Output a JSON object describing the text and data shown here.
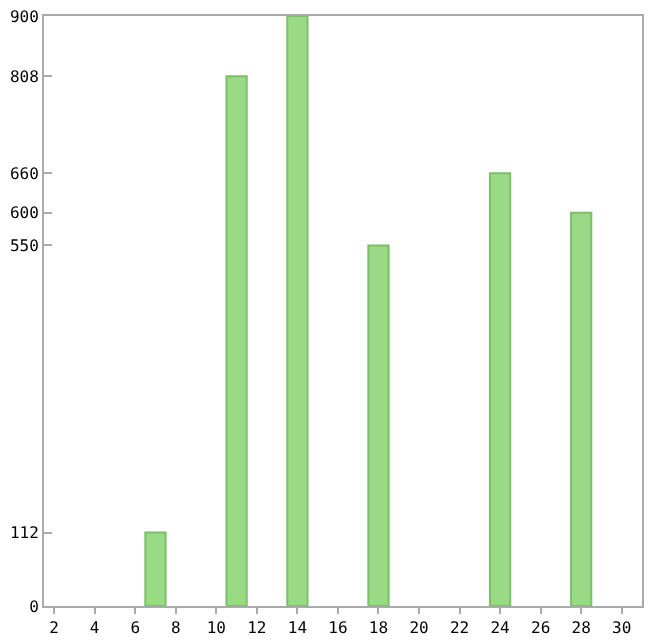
{
  "chart_data": {
    "type": "bar",
    "x": [
      7,
      11,
      14,
      18,
      24,
      28
    ],
    "values": [
      112,
      808,
      900,
      550,
      660,
      600
    ],
    "color": "#9ada84",
    "xlim": [
      1.5,
      31
    ],
    "xticks": [
      2,
      4,
      6,
      8,
      10,
      12,
      14,
      16,
      18,
      20,
      22,
      24,
      26,
      28,
      30
    ],
    "ylim": [
      0,
      900
    ],
    "yticks": [
      0,
      112,
      550,
      600,
      660,
      808,
      900
    ],
    "grid": false
  }
}
